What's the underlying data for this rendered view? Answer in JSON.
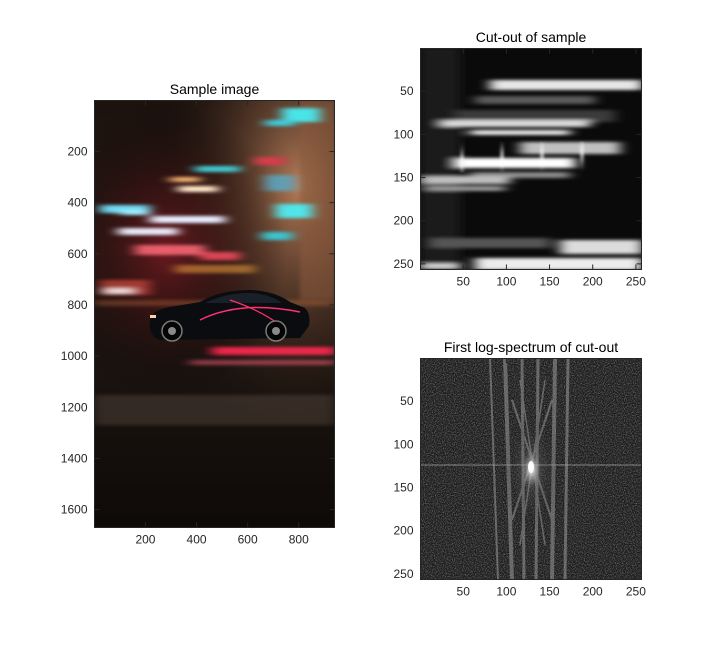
{
  "figure": {
    "background": "#ffffff",
    "axis_color": "#262626"
  },
  "chart_data": [
    {
      "type": "image",
      "title": "Sample image",
      "xlabel": "",
      "ylabel": "",
      "xlim": [
        0.5,
        940
      ],
      "ylim": [
        0.5,
        1670
      ],
      "y_reversed": true,
      "xticks": [
        200,
        400,
        600,
        800
      ],
      "yticks": [
        200,
        400,
        600,
        800,
        1000,
        1200,
        1400,
        1600
      ],
      "content": "night street photo: black car with motion-blurred light streaks"
    },
    {
      "type": "image",
      "title": "Cut-out of sample",
      "xlabel": "",
      "ylabel": "",
      "xlim": [
        0.5,
        256.5
      ],
      "ylim": [
        0.5,
        256.5
      ],
      "y_reversed": true,
      "xticks": [
        50,
        100,
        150,
        200,
        250
      ],
      "yticks": [
        50,
        100,
        150,
        200,
        250
      ],
      "colormap": "gray"
    },
    {
      "type": "heatmap",
      "title": "First log-spectrum of cut-out",
      "xlabel": "",
      "ylabel": "",
      "xlim": [
        0.5,
        256.5
      ],
      "ylim": [
        0.5,
        256.5
      ],
      "y_reversed": true,
      "xticks": [
        50,
        100,
        150,
        200,
        250
      ],
      "yticks": [
        50,
        100,
        150,
        200,
        250
      ],
      "colormap": "gray",
      "peak": [
        129,
        129
      ]
    }
  ]
}
